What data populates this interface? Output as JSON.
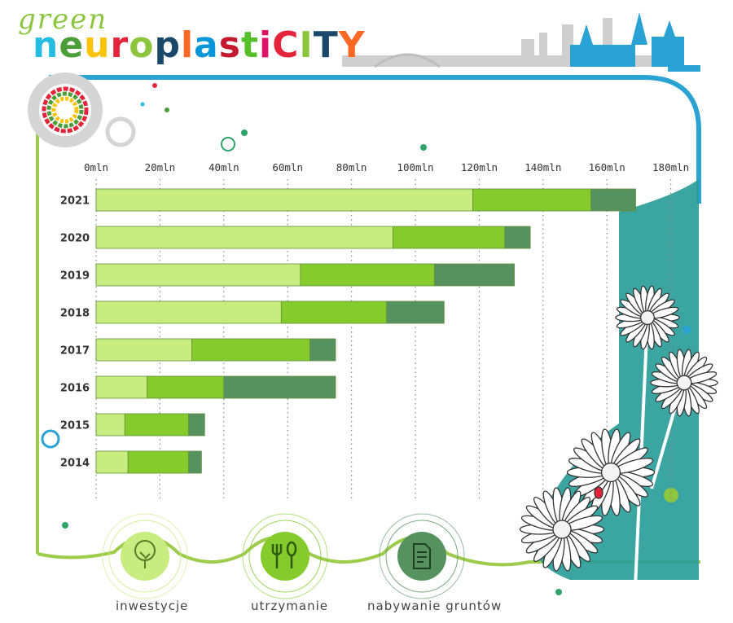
{
  "brand": {
    "prefix": "green",
    "title_lower": "neuroplasti",
    "title_upper": "CITY"
  },
  "colors": {
    "inwestycje": "#c9ec80",
    "utrzymanie": "#85cb2c",
    "nabywanie": "#55925f",
    "teal": "#2a9d9a",
    "blue_frame": "#2aa3d4",
    "frame_green": "#9ccc4a"
  },
  "legend": [
    {
      "label": "inwestycje",
      "icon": "tree-icon"
    },
    {
      "label": "utrzymanie",
      "icon": "fork-spoon-icon"
    },
    {
      "label": "nabywanie gruntów",
      "icon": "document-icon"
    }
  ],
  "chart_data": {
    "type": "bar",
    "orientation": "horizontal",
    "stacked": true,
    "categories": [
      "2021",
      "2020",
      "2019",
      "2018",
      "2017",
      "2016",
      "2015",
      "2014"
    ],
    "tick_labels": [
      "0mln",
      "20mln",
      "40mln",
      "60mln",
      "80mln",
      "100mln",
      "120mln",
      "140mln",
      "160mln",
      "180mln"
    ],
    "xlim": [
      0,
      180
    ],
    "grid": true,
    "legend_position": "bottom",
    "series": [
      {
        "name": "inwestycje",
        "values": [
          118,
          93,
          64,
          58,
          30,
          16,
          9,
          10
        ]
      },
      {
        "name": "utrzymanie",
        "values": [
          37,
          35,
          42,
          33,
          37,
          24,
          20,
          19
        ]
      },
      {
        "name": "nabywanie gruntów",
        "values": [
          14,
          8,
          25,
          18,
          8,
          35,
          5,
          4
        ]
      }
    ]
  }
}
